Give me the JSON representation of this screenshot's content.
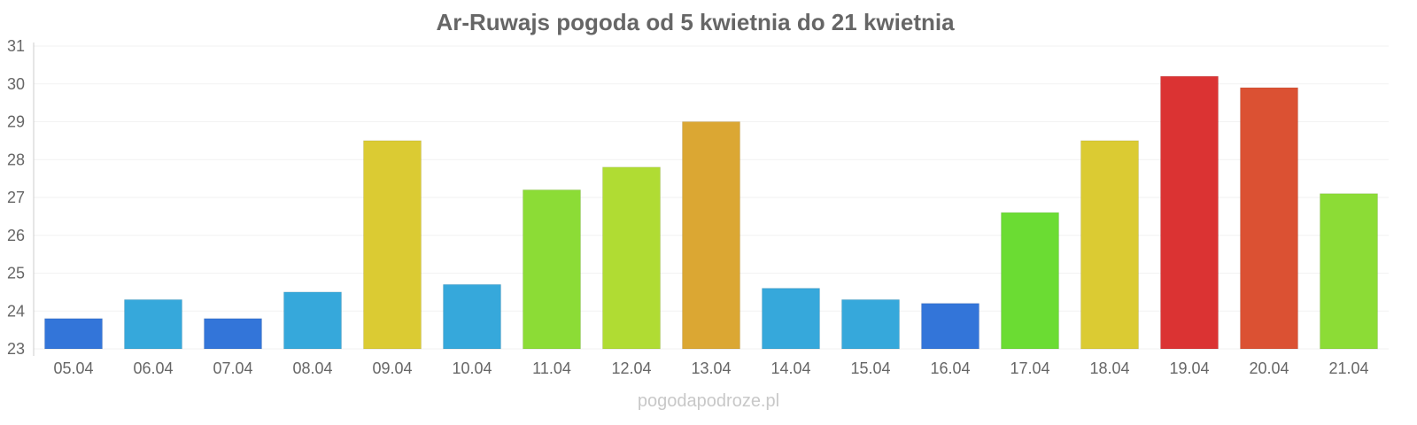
{
  "chart_data": {
    "type": "bar",
    "title": "Ar-Ruwajs pogoda od 5 kwietnia do 21 kwietnia",
    "xlabel": "",
    "ylabel": "",
    "ylim": [
      23,
      31
    ],
    "yticks": [
      "23",
      "24",
      "25",
      "26",
      "27",
      "28",
      "29",
      "30",
      "31"
    ],
    "grid": true,
    "categories": [
      "05.04",
      "06.04",
      "07.04",
      "08.04",
      "09.04",
      "10.04",
      "11.04",
      "12.04",
      "13.04",
      "14.04",
      "15.04",
      "16.04",
      "17.04",
      "18.04",
      "19.04",
      "20.04",
      "21.04"
    ],
    "values": [
      23.8,
      24.3,
      23.8,
      24.5,
      28.5,
      24.7,
      27.2,
      27.8,
      29.0,
      24.6,
      24.3,
      24.2,
      26.6,
      28.5,
      30.2,
      29.9,
      27.1
    ],
    "colors": [
      "#3375d9",
      "#36a8db",
      "#3375d9",
      "#36a8db",
      "#dbcb33",
      "#36a8db",
      "#8cdc36",
      "#b0dc33",
      "#dba733",
      "#36a8db",
      "#36a8db",
      "#3375d9",
      "#6bdc33",
      "#dbcb33",
      "#db3333",
      "#db5133",
      "#8cdc36"
    ]
  },
  "credit": "pogodapodroze.pl"
}
